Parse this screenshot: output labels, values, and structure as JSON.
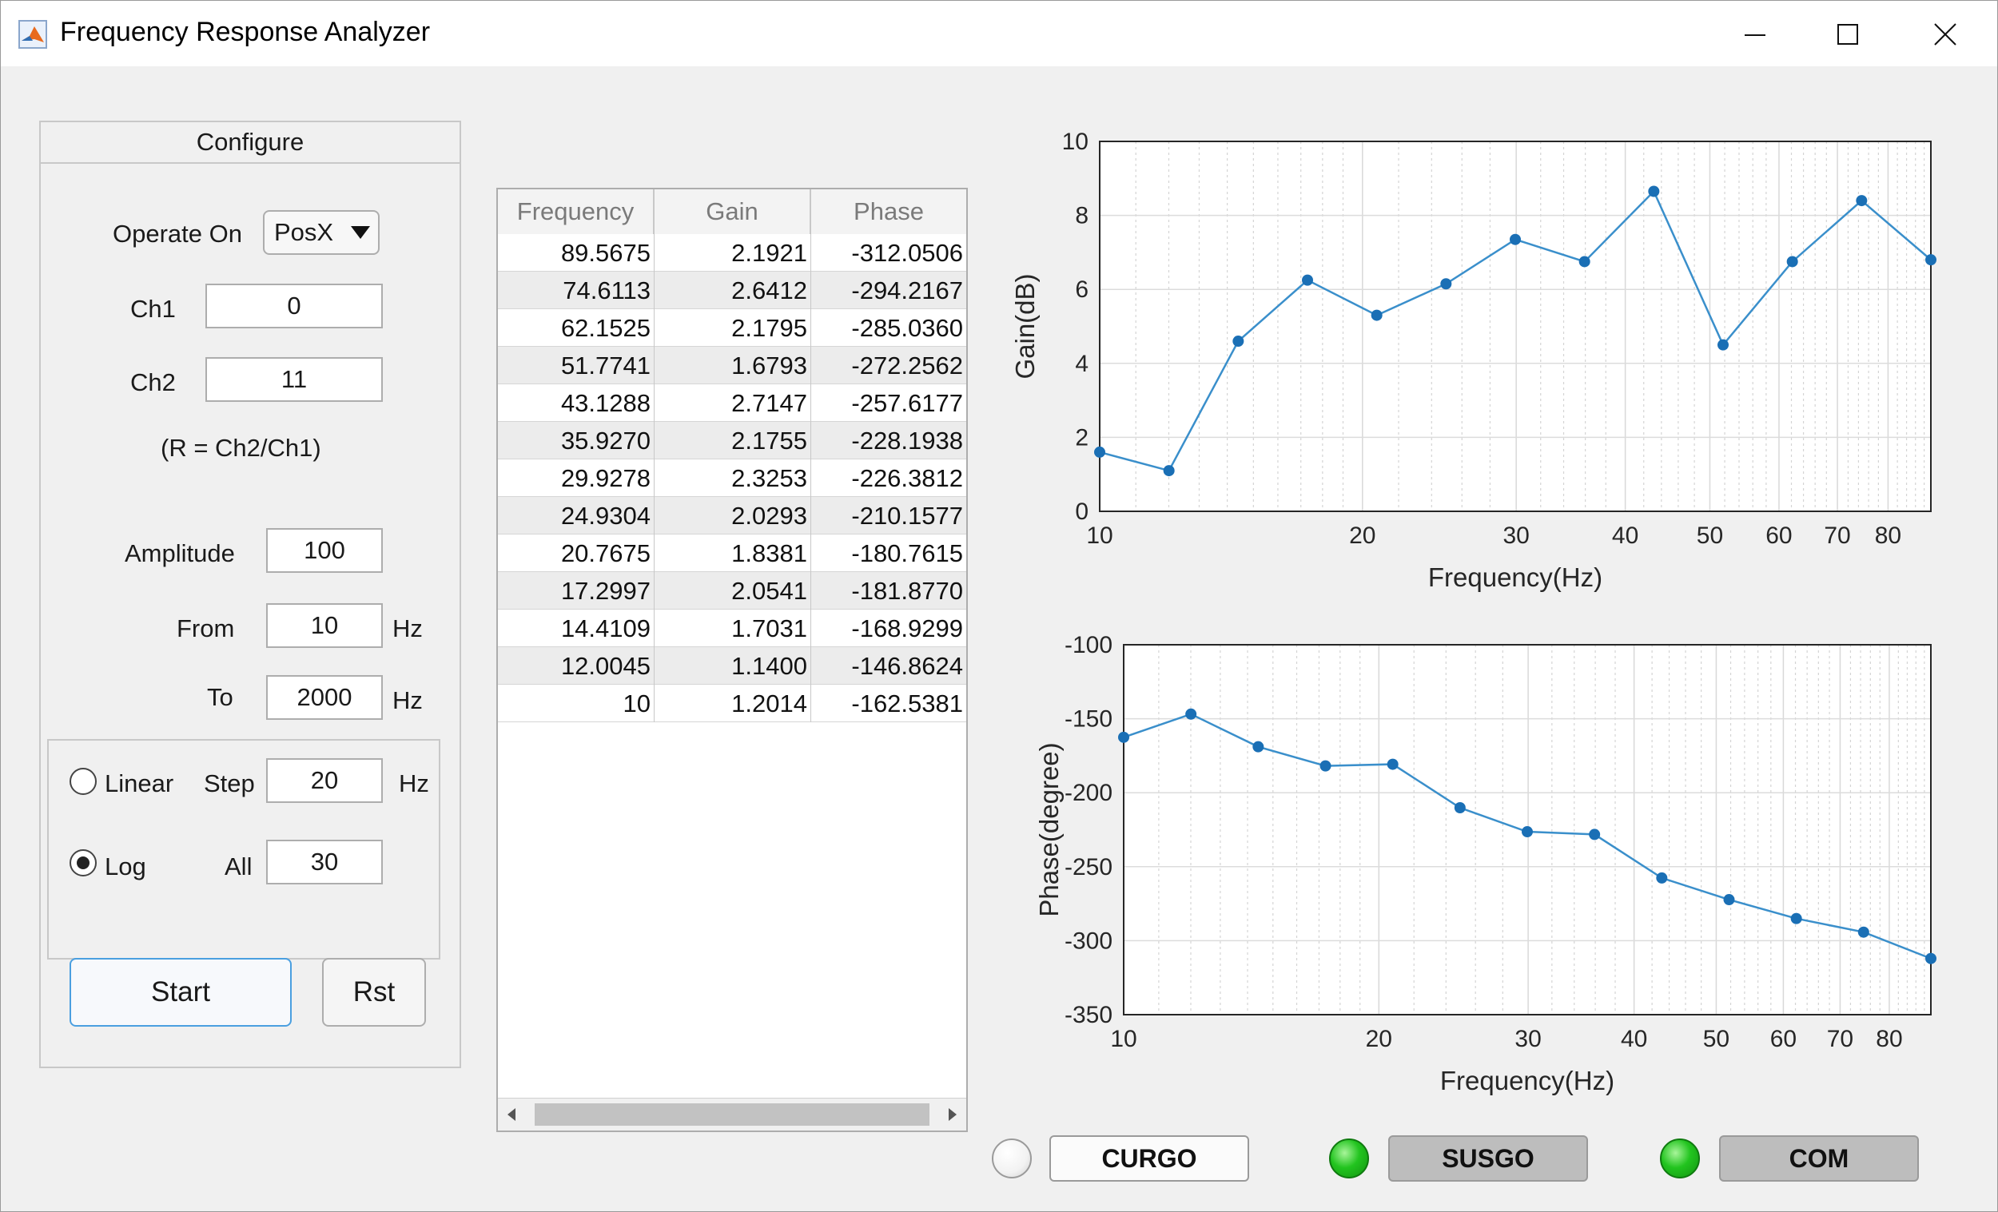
{
  "window": {
    "title": "Frequency Response Analyzer"
  },
  "configure": {
    "title": "Configure",
    "operate_on_label": "Operate On",
    "operate_on_value": "PosX",
    "ch1_label": "Ch1",
    "ch1_value": "0",
    "ch2_label": "Ch2",
    "ch2_value": "11",
    "ratio_note": "(R = Ch2/Ch1)",
    "amplitude_label": "Amplitude",
    "amplitude_value": "100",
    "from_label": "From",
    "from_value": "10",
    "from_unit": "Hz",
    "to_label": "To",
    "to_value": "2000",
    "to_unit": "Hz",
    "linear_label": "Linear",
    "step_label": "Step",
    "step_value": "20",
    "step_unit": "Hz",
    "log_label": "Log",
    "all_label": "All",
    "all_value": "30",
    "scale_selected": "Log",
    "start_label": "Start",
    "rst_label": "Rst"
  },
  "table": {
    "headers": [
      "Frequency",
      "Gain",
      "Phase"
    ],
    "rows": [
      [
        "89.5675",
        "2.1921",
        "-312.0506"
      ],
      [
        "74.6113",
        "2.6412",
        "-294.2167"
      ],
      [
        "62.1525",
        "2.1795",
        "-285.0360"
      ],
      [
        "51.7741",
        "1.6793",
        "-272.2562"
      ],
      [
        "43.1288",
        "2.7147",
        "-257.6177"
      ],
      [
        "35.9270",
        "2.1755",
        "-228.1938"
      ],
      [
        "29.9278",
        "2.3253",
        "-226.3812"
      ],
      [
        "24.9304",
        "2.0293",
        "-210.1577"
      ],
      [
        "20.7675",
        "1.8381",
        "-180.7615"
      ],
      [
        "17.2997",
        "2.0541",
        "-181.8770"
      ],
      [
        "14.4109",
        "1.7031",
        "-168.9299"
      ],
      [
        "12.0045",
        "1.1400",
        "-146.8624"
      ],
      [
        "10",
        "1.2014",
        "-162.5381"
      ]
    ]
  },
  "status": {
    "curgo_label": "CURGO",
    "curgo_on": false,
    "susgo_label": "SUSGO",
    "susgo_on": true,
    "com_label": "COM",
    "com_on": true,
    "lamp_on_color": "#22c41f",
    "lamp_off_color": "#f2f2f2"
  },
  "chart_data": [
    {
      "type": "line",
      "xscale": "log",
      "xlabel": "Frequency(Hz)",
      "ylabel": "Gain(dB)",
      "xlim": [
        10,
        89.5675
      ],
      "ylim": [
        0,
        10
      ],
      "xticks": [
        10,
        20,
        30,
        40,
        50,
        60,
        70,
        80
      ],
      "yticks": [
        0,
        2,
        4,
        6,
        8,
        10
      ],
      "grid": true,
      "color": "#3a8fcb",
      "x": [
        10,
        12.0045,
        14.4109,
        17.2997,
        20.7675,
        24.9304,
        29.9278,
        35.927,
        43.1288,
        51.7741,
        62.1525,
        74.6113,
        89.5675
      ],
      "y": [
        1.6,
        1.1,
        4.6,
        6.25,
        5.3,
        6.15,
        7.35,
        6.75,
        8.65,
        4.5,
        6.75,
        8.4,
        6.8
      ]
    },
    {
      "type": "line",
      "xscale": "log",
      "xlabel": "Frequency(Hz)",
      "ylabel": "Phase(degree)",
      "xlim": [
        10,
        89.5675
      ],
      "ylim": [
        -350,
        -100
      ],
      "xticks": [
        10,
        20,
        30,
        40,
        50,
        60,
        70,
        80
      ],
      "yticks": [
        -350,
        -300,
        -250,
        -200,
        -150,
        -100
      ],
      "grid": true,
      "color": "#3a8fcb",
      "x": [
        10,
        12.0045,
        14.4109,
        17.2997,
        20.7675,
        24.9304,
        29.9278,
        35.927,
        43.1288,
        51.7741,
        62.1525,
        74.6113,
        89.5675
      ],
      "y": [
        -162.5381,
        -146.8624,
        -168.9299,
        -181.877,
        -180.7615,
        -210.1577,
        -226.3812,
        -228.1938,
        -257.6177,
        -272.2562,
        -285.036,
        -294.2167,
        -312.0506
      ]
    }
  ]
}
